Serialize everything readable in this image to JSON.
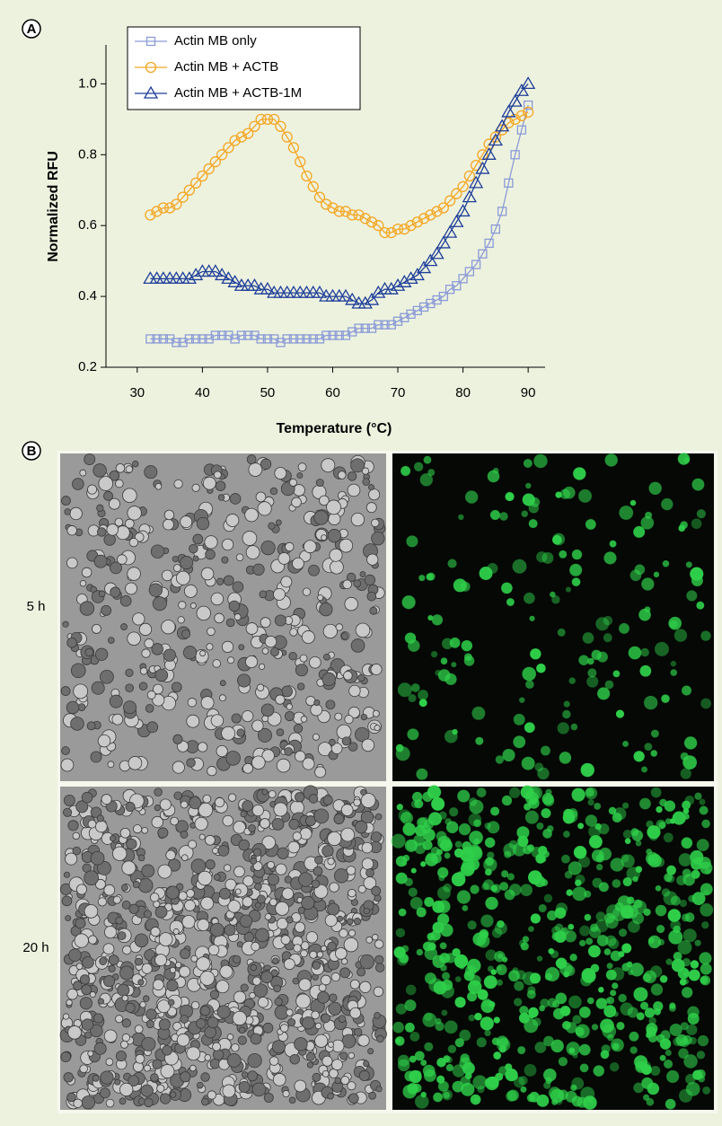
{
  "chart_data": {
    "type": "line",
    "xlabel": "Temperature (°C)",
    "ylabel": "Normalized RFU",
    "x": [
      32,
      33,
      34,
      35,
      36,
      37,
      38,
      39,
      40,
      41,
      42,
      43,
      44,
      45,
      46,
      47,
      48,
      49,
      50,
      51,
      52,
      53,
      54,
      55,
      56,
      57,
      58,
      59,
      60,
      61,
      62,
      63,
      64,
      65,
      66,
      67,
      68,
      69,
      70,
      71,
      72,
      73,
      74,
      75,
      76,
      77,
      78,
      79,
      80,
      81,
      82,
      83,
      84,
      85,
      86,
      87,
      88,
      89,
      90
    ],
    "series": [
      {
        "name": "Actin MB only",
        "color": "#8b9bd6",
        "marker": "square",
        "values": [
          0.28,
          0.28,
          0.28,
          0.28,
          0.27,
          0.27,
          0.28,
          0.28,
          0.28,
          0.28,
          0.29,
          0.29,
          0.29,
          0.28,
          0.29,
          0.29,
          0.29,
          0.28,
          0.28,
          0.28,
          0.27,
          0.28,
          0.28,
          0.28,
          0.28,
          0.28,
          0.28,
          0.29,
          0.29,
          0.29,
          0.29,
          0.3,
          0.31,
          0.31,
          0.31,
          0.32,
          0.32,
          0.32,
          0.33,
          0.34,
          0.35,
          0.36,
          0.37,
          0.38,
          0.39,
          0.4,
          0.42,
          0.43,
          0.45,
          0.47,
          0.49,
          0.52,
          0.55,
          0.59,
          0.64,
          0.72,
          0.8,
          0.87,
          0.94
        ]
      },
      {
        "name": "Actin MB + ACTB",
        "color": "#f4a623",
        "marker": "circle",
        "values": [
          0.63,
          0.64,
          0.65,
          0.65,
          0.66,
          0.68,
          0.7,
          0.72,
          0.74,
          0.76,
          0.78,
          0.8,
          0.82,
          0.84,
          0.85,
          0.86,
          0.88,
          0.9,
          0.9,
          0.9,
          0.88,
          0.85,
          0.82,
          0.78,
          0.74,
          0.71,
          0.68,
          0.66,
          0.65,
          0.64,
          0.64,
          0.63,
          0.63,
          0.62,
          0.61,
          0.6,
          0.58,
          0.58,
          0.59,
          0.59,
          0.6,
          0.61,
          0.62,
          0.63,
          0.64,
          0.65,
          0.67,
          0.69,
          0.71,
          0.74,
          0.77,
          0.8,
          0.83,
          0.85,
          0.87,
          0.89,
          0.9,
          0.91,
          0.92
        ]
      },
      {
        "name": "Actin MB + ACTB-1M",
        "color": "#1f3f99",
        "marker": "triangle",
        "values": [
          0.45,
          0.45,
          0.45,
          0.45,
          0.45,
          0.45,
          0.45,
          0.46,
          0.47,
          0.47,
          0.47,
          0.46,
          0.45,
          0.44,
          0.43,
          0.43,
          0.43,
          0.42,
          0.42,
          0.41,
          0.41,
          0.41,
          0.41,
          0.41,
          0.41,
          0.41,
          0.41,
          0.4,
          0.4,
          0.4,
          0.4,
          0.39,
          0.38,
          0.38,
          0.39,
          0.41,
          0.42,
          0.42,
          0.43,
          0.44,
          0.45,
          0.46,
          0.48,
          0.5,
          0.52,
          0.55,
          0.58,
          0.61,
          0.64,
          0.68,
          0.72,
          0.76,
          0.8,
          0.84,
          0.88,
          0.92,
          0.95,
          0.98,
          1.0
        ]
      }
    ],
    "xlim": [
      25.2,
      92.6
    ],
    "xticks": [
      30,
      40,
      50,
      60,
      70,
      80,
      90
    ],
    "ylim": [
      0.2,
      1.11
    ],
    "yticks": [
      0.2,
      0.4,
      0.6,
      0.8,
      {
        "value": 1,
        "label": "1.0"
      }
    ],
    "legend": "top-left"
  },
  "figure": {
    "panel_a": "A",
    "panel_b": "B",
    "rows": [
      "5 h",
      "20 h"
    ]
  }
}
